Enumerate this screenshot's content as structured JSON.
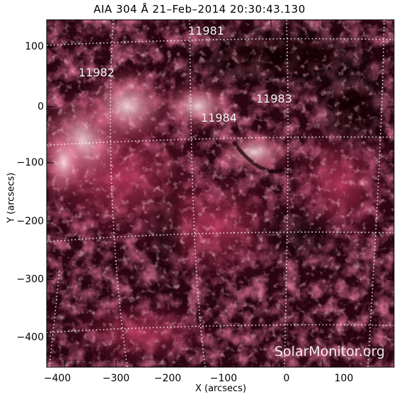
{
  "title": "AIA 304 Å 21–Feb–2014 20:30:43.130",
  "image": {
    "type": "solar-disk-crop",
    "channel": "AIA 304",
    "palette": {
      "dark": "#1a0008",
      "mid": "#8a1a3c",
      "bright": "#e8869e",
      "hot": "#ffd6e0"
    },
    "grid": "dotted heliographic lines"
  },
  "axes": {
    "xlabel": "X (arcsecs)",
    "ylabel": "Y (arcsecs)",
    "xticks": [
      "−400",
      "−300",
      "−200",
      "−100",
      "0",
      "100"
    ],
    "yticks": [
      "100",
      "0",
      "−100",
      "−200",
      "−300",
      "−400"
    ]
  },
  "regions": [
    {
      "label": "11981"
    },
    {
      "label": "11982"
    },
    {
      "label": "11983"
    },
    {
      "label": "11984"
    }
  ],
  "credit": "SolarMonitor.org"
}
